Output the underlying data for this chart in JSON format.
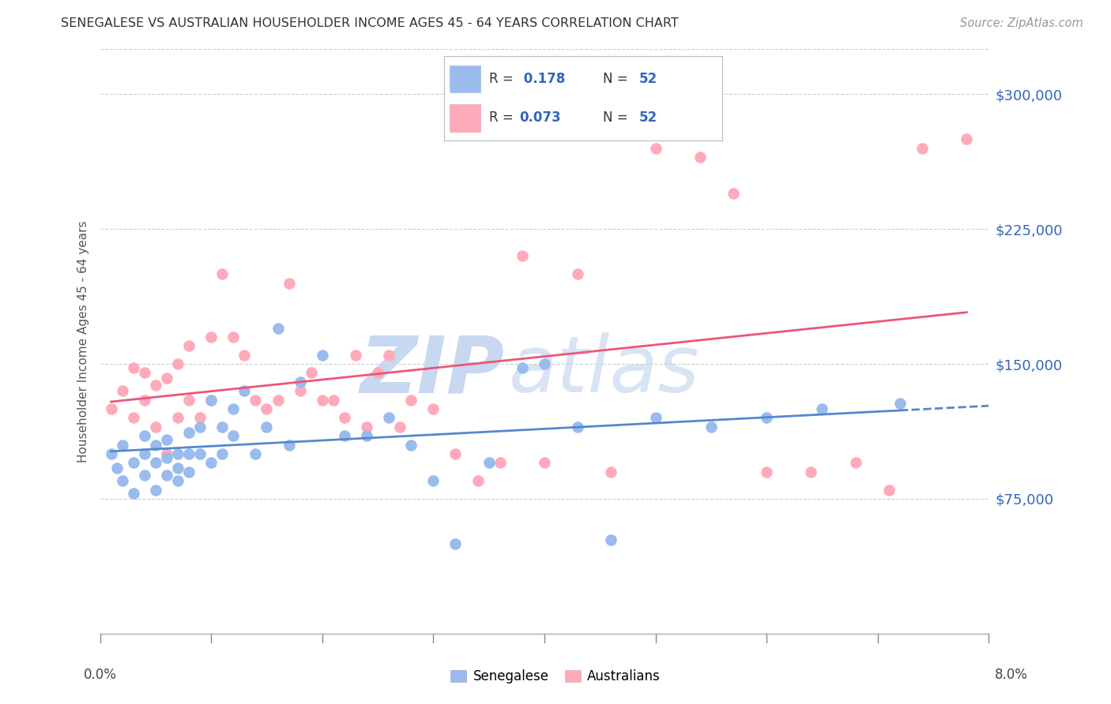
{
  "title": "SENEGALESE VS AUSTRALIAN HOUSEHOLDER INCOME AGES 45 - 64 YEARS CORRELATION CHART",
  "source": "Source: ZipAtlas.com",
  "ylabel": "Householder Income Ages 45 - 64 years",
  "xmin": 0.0,
  "xmax": 0.08,
  "ymin": 0,
  "ymax": 325000,
  "yticks": [
    75000,
    150000,
    225000,
    300000
  ],
  "ytick_labels": [
    "$75,000",
    "$150,000",
    "$225,000",
    "$300,000"
  ],
  "color_senegalese": "#99BBEE",
  "color_australians": "#FFAABB",
  "color_trend_senegalese": "#5588CC",
  "color_trend_australians": "#EE5577",
  "color_blue_text": "#3366BB",
  "watermark_zip": "ZIP",
  "watermark_atlas": "atlas",
  "watermark_color": "#C8D8F0",
  "senegalese_x": [
    0.001,
    0.0015,
    0.002,
    0.002,
    0.003,
    0.003,
    0.004,
    0.004,
    0.004,
    0.005,
    0.005,
    0.005,
    0.006,
    0.006,
    0.006,
    0.007,
    0.007,
    0.007,
    0.008,
    0.008,
    0.008,
    0.009,
    0.009,
    0.01,
    0.01,
    0.011,
    0.011,
    0.012,
    0.012,
    0.013,
    0.014,
    0.015,
    0.016,
    0.017,
    0.018,
    0.02,
    0.022,
    0.024,
    0.026,
    0.028,
    0.03,
    0.032,
    0.035,
    0.038,
    0.04,
    0.043,
    0.046,
    0.05,
    0.055,
    0.06,
    0.065,
    0.072
  ],
  "senegalese_y": [
    100000,
    92000,
    85000,
    105000,
    78000,
    95000,
    88000,
    100000,
    110000,
    80000,
    95000,
    105000,
    88000,
    98000,
    108000,
    85000,
    92000,
    100000,
    90000,
    100000,
    112000,
    100000,
    115000,
    95000,
    130000,
    100000,
    115000,
    110000,
    125000,
    135000,
    100000,
    115000,
    170000,
    105000,
    140000,
    155000,
    110000,
    110000,
    120000,
    105000,
    85000,
    50000,
    95000,
    148000,
    150000,
    115000,
    52000,
    120000,
    115000,
    120000,
    125000,
    128000
  ],
  "australians_x": [
    0.001,
    0.002,
    0.003,
    0.003,
    0.004,
    0.004,
    0.005,
    0.005,
    0.006,
    0.006,
    0.007,
    0.007,
    0.008,
    0.008,
    0.009,
    0.01,
    0.01,
    0.011,
    0.012,
    0.013,
    0.014,
    0.015,
    0.016,
    0.017,
    0.018,
    0.019,
    0.02,
    0.021,
    0.022,
    0.023,
    0.024,
    0.025,
    0.026,
    0.027,
    0.028,
    0.03,
    0.032,
    0.034,
    0.036,
    0.038,
    0.04,
    0.043,
    0.046,
    0.05,
    0.054,
    0.057,
    0.06,
    0.064,
    0.068,
    0.071,
    0.074,
    0.078
  ],
  "australians_y": [
    125000,
    135000,
    120000,
    148000,
    130000,
    145000,
    115000,
    138000,
    100000,
    142000,
    120000,
    150000,
    130000,
    160000,
    120000,
    130000,
    165000,
    200000,
    165000,
    155000,
    130000,
    125000,
    130000,
    195000,
    135000,
    145000,
    130000,
    130000,
    120000,
    155000,
    115000,
    145000,
    155000,
    115000,
    130000,
    125000,
    100000,
    85000,
    95000,
    210000,
    95000,
    200000,
    90000,
    270000,
    265000,
    245000,
    90000,
    90000,
    95000,
    80000,
    270000,
    275000
  ]
}
